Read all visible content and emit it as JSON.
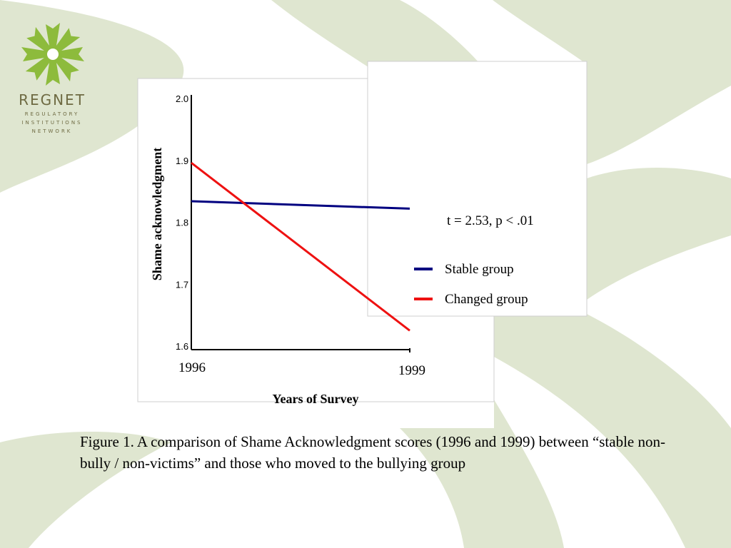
{
  "colors": {
    "background": "#ffffff",
    "petal": "#dfe6d0",
    "logo_green": "#8dbb3c",
    "logo_text": "#6e6a42",
    "stable": "#000080",
    "changed": "#ee1111"
  },
  "logo": {
    "icon": "starburst-logo-icon",
    "wordmark": "REGNET",
    "subtitle_lines": [
      "REGULATORY",
      "INSTITUTIONS",
      "NETWORK"
    ]
  },
  "chart_data": {
    "type": "line",
    "x": [
      "1996",
      "1999"
    ],
    "xlabel": "Years of Survey",
    "ylabel": "Shame acknowledgment",
    "ylim": [
      1.6,
      2.0
    ],
    "yticks": [
      "2.0",
      "1.9",
      "1.8",
      "1.7",
      "1.6"
    ],
    "series": [
      {
        "name": "Stable group",
        "color": "#000080",
        "values": [
          1.834,
          1.822
        ]
      },
      {
        "name": "Changed group",
        "color": "#ee1111",
        "values": [
          1.896,
          1.625
        ]
      }
    ],
    "annotation": "t = 2.53, p < .01",
    "grid": false,
    "legend": "right"
  },
  "caption": "Figure 1. A comparison of Shame Acknowledgment scores (1996 and 1999) between “stable non-bully / non-victims” and those who moved to the bullying group"
}
